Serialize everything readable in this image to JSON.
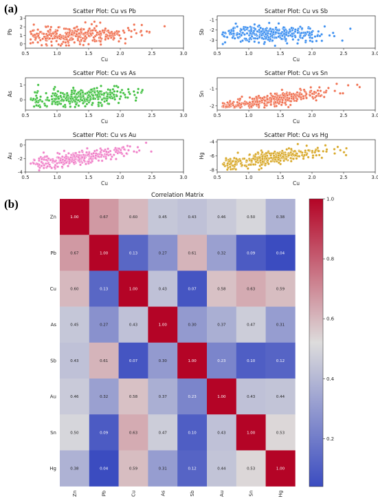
{
  "panel_labels": [
    "(a)",
    "(b)"
  ],
  "colors": {
    "Pb": "#f07050",
    "Sb": "#3a8ef0",
    "As": "#40c040",
    "Sn": "#f07050",
    "Au": "#f080c8",
    "Hg": "#d8a828",
    "heat_low": "#3b4cc0",
    "heat_mid": "#dddcdc",
    "heat_high": "#b40426"
  },
  "chart_data": [
    {
      "type": "scatter",
      "id": "pb",
      "title": "Scatter Plot: Cu vs Pb",
      "xlabel": "Cu",
      "ylabel": "Pb",
      "xlim": [
        0.5,
        3.0
      ],
      "ylim": [
        -0.5,
        3.3
      ],
      "xticks": [
        0.5,
        1.0,
        1.5,
        2.0,
        2.5,
        3.0
      ],
      "yticks": [
        0,
        1,
        2,
        3
      ],
      "trend": {
        "intercept": 0.8,
        "slope": 0.2,
        "spread": 0.5,
        "min": -0.2,
        "max": 3.0
      }
    },
    {
      "type": "scatter",
      "id": "sb",
      "title": "Scatter Plot: Cu vs Sb",
      "xlabel": "Cu",
      "ylabel": "Sb",
      "xlim": [
        0.5,
        3.0
      ],
      "ylim": [
        -3.8,
        -0.6
      ],
      "xticks": [
        0.5,
        1.0,
        1.5,
        2.0,
        2.5,
        3.0
      ],
      "yticks": [
        -3,
        -2,
        -1
      ],
      "trend": {
        "intercept": -2.35,
        "slope": -0.05,
        "spread": 0.4,
        "min": -3.6,
        "max": -0.8
      }
    },
    {
      "type": "scatter",
      "id": "as",
      "title": "Scatter Plot: Cu vs As",
      "xlabel": "Cu",
      "ylabel": "As",
      "xlim": [
        0.5,
        3.0
      ],
      "ylim": [
        -0.7,
        1.5
      ],
      "xticks": [
        0.5,
        1.0,
        1.5,
        2.0,
        2.5,
        3.0
      ],
      "yticks": [
        0,
        1
      ],
      "trend": {
        "intercept": -0.25,
        "slope": 0.3,
        "spread": 0.3,
        "min": -0.5,
        "max": 1.35
      }
    },
    {
      "type": "scatter",
      "id": "sn",
      "title": "Scatter Plot: Cu vs Sn",
      "xlabel": "Cu",
      "ylabel": "Sn",
      "xlim": [
        0.5,
        3.0
      ],
      "ylim": [
        -2.25,
        -0.35
      ],
      "xticks": [
        0.5,
        1.0,
        1.5,
        2.0,
        2.5,
        3.0
      ],
      "yticks": [
        -2,
        -1
      ],
      "trend": {
        "intercept": -2.4,
        "slope": 0.55,
        "spread": 0.2,
        "min": -2.1,
        "max": -0.45
      }
    },
    {
      "type": "scatter",
      "id": "au",
      "title": "Scatter Plot: Cu vs Au",
      "xlabel": "Cu",
      "ylabel": "Au",
      "xlim": [
        0.5,
        3.0
      ],
      "ylim": [
        -4.0,
        0.8
      ],
      "xticks": [
        0.5,
        1.0,
        1.5,
        2.0,
        2.5,
        3.0
      ],
      "yticks": [
        -4,
        -2,
        0
      ],
      "trend": {
        "intercept": -3.7,
        "slope": 1.3,
        "spread": 0.5,
        "min": -3.8,
        "max": 0.4
      }
    },
    {
      "type": "scatter",
      "id": "hg",
      "title": "Scatter Plot: Cu vs Hg",
      "xlabel": "Cu",
      "ylabel": "Hg",
      "xlim": [
        0.5,
        3.0
      ],
      "ylim": [
        -8.3,
        -3.7
      ],
      "xticks": [
        0.5,
        1.0,
        1.5,
        2.0,
        2.5,
        3.0
      ],
      "yticks": [
        -8,
        -6,
        -4
      ],
      "trend": {
        "intercept": -8.0,
        "slope": 1.3,
        "spread": 0.55,
        "min": -8.0,
        "max": -4.0
      }
    },
    {
      "type": "heatmap",
      "id": "corr",
      "title": "Correlation Matrix",
      "labels": [
        "Zn",
        "Pb",
        "Cu",
        "As",
        "Sb",
        "Au",
        "Sn",
        "Hg"
      ],
      "values": [
        [
          1.0,
          0.67,
          0.6,
          0.45,
          0.43,
          0.46,
          0.5,
          0.38
        ],
        [
          0.67,
          1.0,
          0.13,
          0.27,
          0.61,
          0.32,
          0.09,
          0.04
        ],
        [
          0.6,
          0.13,
          1.0,
          0.43,
          0.07,
          0.58,
          0.63,
          0.59
        ],
        [
          0.45,
          0.27,
          0.43,
          1.0,
          0.3,
          0.37,
          0.47,
          0.31
        ],
        [
          0.43,
          0.61,
          0.07,
          0.3,
          1.0,
          0.23,
          0.1,
          0.12
        ],
        [
          0.46,
          0.32,
          0.58,
          0.37,
          0.23,
          1.0,
          0.43,
          0.44
        ],
        [
          0.5,
          0.09,
          0.63,
          0.47,
          0.1,
          0.43,
          1.0,
          0.53
        ],
        [
          0.38,
          0.04,
          0.59,
          0.31,
          0.12,
          0.44,
          0.53,
          1.0
        ]
      ],
      "vmin": 0.04,
      "vmax": 1.0,
      "colorbar_ticks": [
        0.2,
        0.4,
        0.6,
        0.8,
        1.0
      ]
    }
  ]
}
